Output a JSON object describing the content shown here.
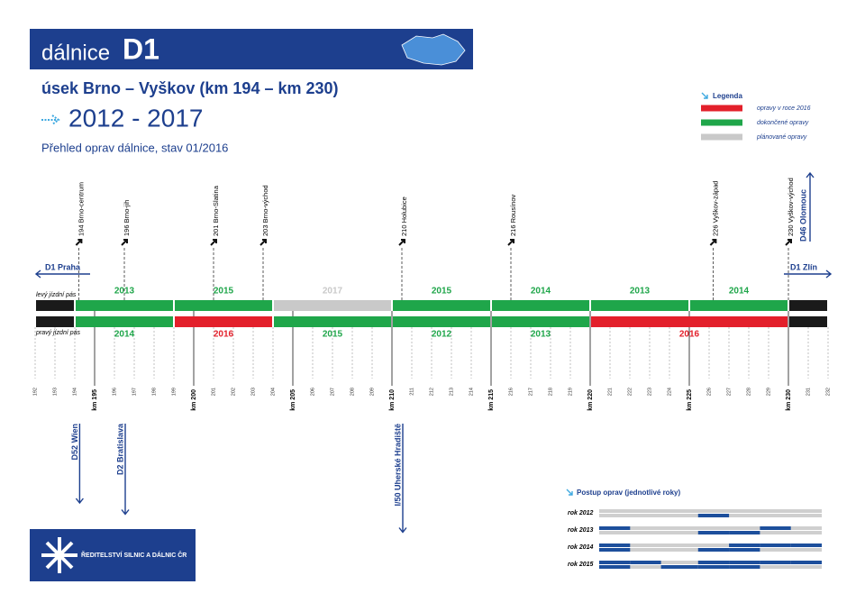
{
  "header": {
    "title": "dálnice",
    "road": "D1"
  },
  "section": "úsek Brno – Vyškov (km 194 – km 230)",
  "years": "2012 - 2017",
  "subtitle": "Přehled oprav dálnice, stav 01/2016",
  "legend": {
    "title": "Legenda",
    "items": [
      {
        "label": "opravy v roce 2016",
        "color": "#e3202b"
      },
      {
        "label": "dokončené opravy",
        "color": "#1fa64a"
      },
      {
        "label": "plánované opravy",
        "color": "#c9c9c9"
      }
    ]
  },
  "directions": {
    "west": "D1 Praha",
    "east": "D1 Zlín",
    "north": "D46 Olomouc",
    "south": [
      {
        "label": "D52 Wien",
        "km": 194.2
      },
      {
        "label": "D2 Bratislava",
        "km": 196.5
      },
      {
        "label": "I/50 Uherské Hradiště",
        "km": 210.5
      }
    ]
  },
  "exits": [
    {
      "label": "194 Brno-centrum",
      "km": 194.2
    },
    {
      "label": "196 Brno-jih",
      "km": 196.5
    },
    {
      "label": "201 Brno-Slatina",
      "km": 201
    },
    {
      "label": "203 Brno-východ",
      "km": 203.5
    },
    {
      "label": "210 Holubice",
      "km": 210.5
    },
    {
      "label": "216 Rousínov",
      "km": 216
    },
    {
      "label": "226 Vyškov-západ",
      "km": 226.2
    },
    {
      "label": "230 Vyškov-východ",
      "km": 230
    }
  ],
  "timeline": {
    "ticks": [
      192,
      193,
      194,
      {
        "value": 195,
        "label": "km 195"
      },
      196,
      197,
      198,
      199,
      {
        "value": 200,
        "label": "km 200"
      },
      201,
      202,
      203,
      204,
      {
        "value": 205,
        "label": "km 205"
      },
      206,
      207,
      208,
      209,
      {
        "value": 210,
        "label": "km 210"
      },
      211,
      212,
      213,
      214,
      {
        "value": 215,
        "label": "km 215"
      },
      216,
      217,
      218,
      219,
      {
        "value": 220,
        "label": "km 220"
      },
      221,
      222,
      223,
      224,
      {
        "value": 225,
        "label": "km 225"
      },
      226,
      227,
      228,
      229,
      {
        "value": 230,
        "label": "km 230"
      },
      231,
      232
    ],
    "lanes": [
      {
        "label": "levý jízdní pás",
        "segments": [
          {
            "from": 192,
            "to": 194,
            "color": "#1a1a1a"
          },
          {
            "from": 194,
            "to": 199,
            "year": 2013,
            "color": "#1fa64a"
          },
          {
            "from": 199,
            "to": 204,
            "year": 2015,
            "color": "#1fa64a"
          },
          {
            "from": 204,
            "to": 210,
            "year": 2017,
            "color": "#c9c9c9"
          },
          {
            "from": 210,
            "to": 215,
            "year": 2015,
            "color": "#1fa64a"
          },
          {
            "from": 215,
            "to": 220,
            "year": 2014,
            "color": "#1fa64a"
          },
          {
            "from": 220,
            "to": 225,
            "year": 2013,
            "color": "#1fa64a"
          },
          {
            "from": 225,
            "to": 230,
            "year": 2014,
            "color": "#1fa64a"
          },
          {
            "from": 230,
            "to": 232,
            "color": "#1a1a1a"
          }
        ]
      },
      {
        "label": "pravý jízdní pás",
        "segments": [
          {
            "from": 192,
            "to": 194,
            "color": "#1a1a1a"
          },
          {
            "from": 194,
            "to": 199,
            "year": 2014,
            "color": "#1fa64a"
          },
          {
            "from": 199,
            "to": 204,
            "year": 2016,
            "color": "#e3202b"
          },
          {
            "from": 204,
            "to": 210,
            "year": 2015,
            "color": "#1fa64a"
          },
          {
            "from": 210,
            "to": 215,
            "year": 2012,
            "color": "#1fa64a"
          },
          {
            "from": 215,
            "to": 220,
            "year": 2013,
            "color": "#1fa64a"
          },
          {
            "from": 220,
            "to": 230,
            "year": 2016,
            "color": "#e3202b"
          },
          {
            "from": 230,
            "to": 232,
            "color": "#1a1a1a"
          }
        ]
      }
    ]
  },
  "progress": {
    "title": "Postup oprav (jednotlivé roky)",
    "rows": [
      {
        "label": "rok 2012",
        "year": 2012
      },
      {
        "label": "rok 2013",
        "year": 2013
      },
      {
        "label": "rok 2014",
        "year": 2014
      },
      {
        "label": "rok 2015",
        "year": 2015
      }
    ]
  },
  "footer": "ŘEDITELSTVÍ SILNIC A DÁLNIC ČR"
}
